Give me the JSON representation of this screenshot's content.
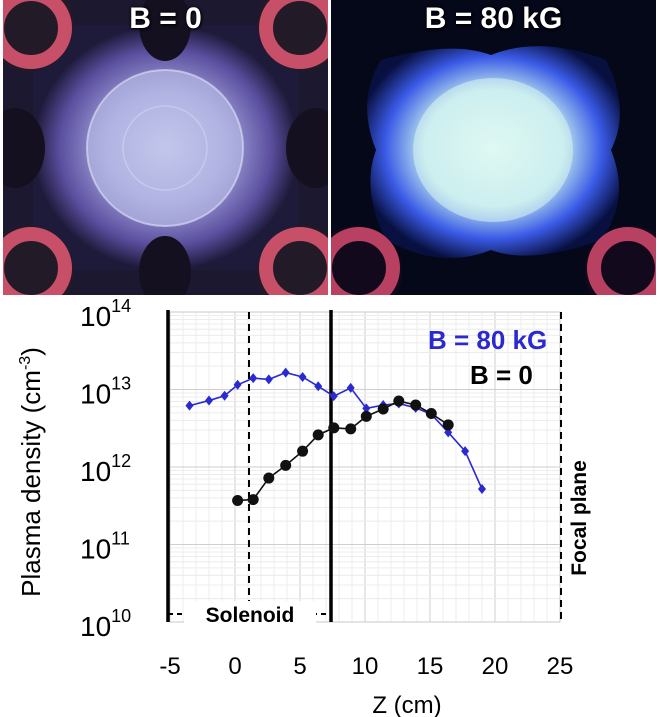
{
  "photos": [
    {
      "label": "B = 0"
    },
    {
      "label": "B = 80 kG"
    }
  ],
  "chart_data": {
    "type": "scatter",
    "xlabel": "Z (cm)",
    "ylabel": "Plasma density (cm",
    "ylabel_sup": "-3",
    "ylabel_close": ")",
    "x_ticks": [
      "-5",
      "0",
      "5",
      "10",
      "15",
      "20",
      "25"
    ],
    "y_ticks": [
      {
        "base": "10",
        "exp": "10"
      },
      {
        "base": "10",
        "exp": "11"
      },
      {
        "base": "10",
        "exp": "12"
      },
      {
        "base": "10",
        "exp": "13"
      },
      {
        "base": "10",
        "exp": "14"
      }
    ],
    "xlim": [
      -5,
      25
    ],
    "ylim": [
      10000000000.0,
      100000000000000.0
    ],
    "yscale": "log",
    "grid": true,
    "annotations": [
      {
        "id": "solenoid",
        "text": "Solenoid"
      },
      {
        "id": "focal",
        "text": "Focal plane"
      }
    ],
    "series": [
      {
        "name": "B = 80 kG",
        "color": "#2a2ad0",
        "marker": "diamond",
        "points": [
          [
            -3.5,
            6200000000000.0
          ],
          [
            -2.0,
            7200000000000.0
          ],
          [
            -0.8,
            8300000000000.0
          ],
          [
            0.2,
            11500000000000.0
          ],
          [
            1.4,
            14000000000000.0
          ],
          [
            2.6,
            13500000000000.0
          ],
          [
            3.9,
            16500000000000.0
          ],
          [
            5.2,
            14500000000000.0
          ],
          [
            6.4,
            11000000000000.0
          ],
          [
            7.6,
            8200000000000.0
          ],
          [
            8.9,
            10500000000000.0
          ],
          [
            10.1,
            5700000000000.0
          ],
          [
            11.4,
            6300000000000.0
          ],
          [
            12.6,
            6600000000000.0
          ],
          [
            13.9,
            5800000000000.0
          ],
          [
            15.1,
            4800000000000.0
          ],
          [
            16.4,
            2800000000000.0
          ],
          [
            17.7,
            1600000000000.0
          ],
          [
            19.0,
            520000000000.0
          ]
        ]
      },
      {
        "name": "B = 0",
        "color": "#111111",
        "marker": "circle",
        "points": [
          [
            0.2,
            370000000000.0
          ],
          [
            1.4,
            380000000000.0
          ],
          [
            2.6,
            720000000000.0
          ],
          [
            3.9,
            1050000000000.0
          ],
          [
            5.2,
            1600000000000.0
          ],
          [
            6.4,
            2600000000000.0
          ],
          [
            7.6,
            3200000000000.0
          ],
          [
            8.9,
            3100000000000.0
          ],
          [
            10.1,
            4500000000000.0
          ],
          [
            11.4,
            5600000000000.0
          ],
          [
            12.6,
            7100000000000.0
          ],
          [
            13.9,
            6300000000000.0
          ],
          [
            15.1,
            4900000000000.0
          ],
          [
            16.4,
            3500000000000.0
          ]
        ]
      }
    ]
  }
}
